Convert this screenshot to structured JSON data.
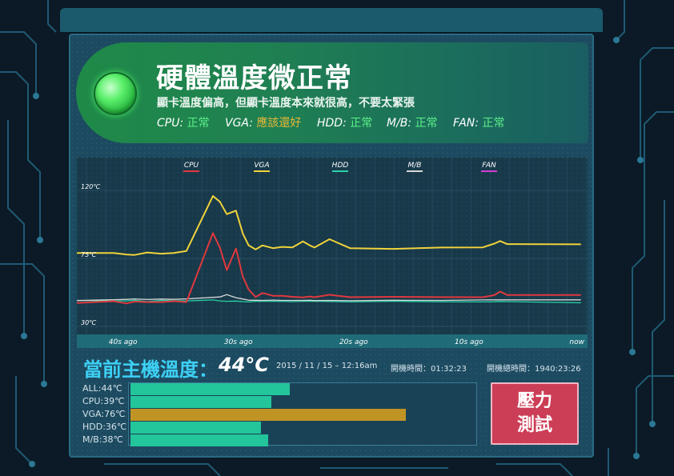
{
  "status": {
    "title": "硬體溫度微正常",
    "subtitle": "顯卡溫度偏高，但顯卡溫度本來就很高，不要太緊張",
    "items": [
      {
        "label": "CPU:",
        "value": "正常",
        "color": "#5df08a"
      },
      {
        "label": "VGA:",
        "value": "應該還好",
        "color": "#e8b93a"
      },
      {
        "label": "HDD:",
        "value": "正常",
        "color": "#5df08a"
      },
      {
        "label": "M/B:",
        "value": "正常",
        "color": "#5df08a"
      },
      {
        "label": "FAN:",
        "value": "正常",
        "color": "#5df08a"
      }
    ]
  },
  "chart_data": {
    "type": "line",
    "legend": [
      {
        "name": "CPU",
        "color": "#e0383e"
      },
      {
        "name": "VGA",
        "color": "#f0d23a"
      },
      {
        "name": "HDD",
        "color": "#2ad1a6"
      },
      {
        "name": "M/B",
        "color": "#d8d8d8"
      },
      {
        "name": "FAN",
        "color": "#d43dd6"
      }
    ],
    "y_ticks": [
      "120℃",
      "75℃",
      "30℃"
    ],
    "x_ticks": [
      "40s ago",
      "30s ago",
      "20s ago",
      "10s ago",
      "now"
    ],
    "ylim": [
      30,
      120
    ],
    "xlim": [
      -44,
      0
    ],
    "x": [
      -44,
      -40.8,
      -39.7,
      -39,
      -37.9,
      -36.7,
      -35.6,
      -34.5,
      -32.2,
      -31.6,
      -31,
      -30.2,
      -29.6,
      -29.1,
      -28.5,
      -27.9,
      -27,
      -26.2,
      -25.3,
      -24.4,
      -23.8,
      -23.4,
      -22.1,
      -20.3,
      -16.6,
      -12.4,
      -8.8,
      -7.8,
      -7.3,
      -6.7,
      -0.3
    ],
    "series": [
      {
        "name": "CPU",
        "values": [
          45.5,
          46.7,
          45.2,
          46.4,
          46.1,
          46.1,
          46.7,
          46.1,
          91.8,
          82.1,
          67.2,
          81.5,
          62.7,
          54.3,
          49.5,
          52.1,
          50.3,
          50.3,
          49.6,
          49.2,
          49.8,
          49.3,
          50.9,
          49.3,
          49.6,
          49.4,
          49.3,
          50.7,
          53.1,
          50.8,
          50.8
        ]
      },
      {
        "name": "VGA",
        "values": [
          78.6,
          78.6,
          77.6,
          77.3,
          78.9,
          78.1,
          78.6,
          79.9,
          116.3,
          112.5,
          104.3,
          106.6,
          91.2,
          83.6,
          81,
          83.6,
          81.8,
          82.6,
          82.3,
          86.3,
          83.6,
          82.2,
          87.7,
          81.7,
          81.3,
          82.2,
          82.3,
          84.8,
          86.5,
          84.5,
          84.3
        ]
      },
      {
        "name": "HDD",
        "values": [
          47.2,
          46.9,
          46.9,
          47.3,
          46.4,
          47.2,
          47,
          46.9,
          47.5,
          46.9,
          46.6,
          46.8,
          46.4,
          46.2,
          46.6,
          46.6,
          46.6,
          46.6,
          46.4,
          46.7,
          46.6,
          46.7,
          46.5,
          46.2,
          46.7,
          46.3,
          46.2,
          46.3,
          46.5,
          46.4,
          45.6
        ]
      },
      {
        "name": "M/B",
        "values": [
          47.1,
          47.7,
          47.9,
          48.2,
          47.8,
          48.1,
          47.9,
          48.2,
          49.2,
          49.5,
          51,
          49,
          48.1,
          47.3,
          47.3,
          47.2,
          47.4,
          47.2,
          47.2,
          47.2,
          47.3,
          47.1,
          47.2,
          47,
          47.3,
          47.2,
          47.5,
          47.6,
          47.6,
          47.6,
          47.6
        ]
      }
    ]
  },
  "current": {
    "label": "當前主機溫度：",
    "value": "44°C",
    "datetime": "2015 / 11 / 15 – 12:16am",
    "uptime": "開機時間：01:32:23",
    "total_uptime": "開機總時間：1940:23:26"
  },
  "bars": [
    {
      "label": "ALL:44℃",
      "value": 44,
      "color": "#23c59a"
    },
    {
      "label": "CPU:39℃",
      "value": 39,
      "color": "#23c59a"
    },
    {
      "label": "VGA:76℃",
      "value": 76,
      "color": "#c09424"
    },
    {
      "label": "HDD:36℃",
      "value": 36,
      "color": "#23c59a"
    },
    {
      "label": "M/B:38℃",
      "value": 38,
      "color": "#23c59a"
    }
  ],
  "stress_button": {
    "line1": "壓力",
    "line2": "測試"
  }
}
